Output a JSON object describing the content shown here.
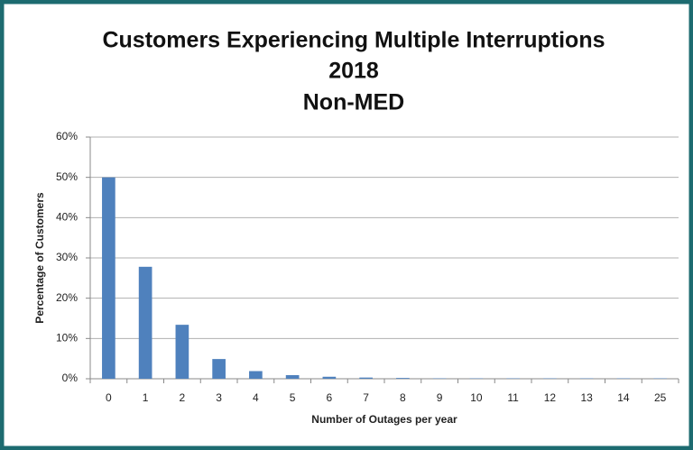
{
  "chart_data": {
    "type": "bar",
    "title": [
      "Customers Experiencing Multiple Interruptions",
      "2018",
      "Non-MED"
    ],
    "x_label": "Number of Outages per year",
    "y_label": "Percentage of Customers",
    "categories": [
      "0",
      "1",
      "2",
      "3",
      "4",
      "5",
      "6",
      "7",
      "8",
      "9",
      "10",
      "11",
      "12",
      "13",
      "14",
      "25"
    ],
    "values": [
      50,
      27.8,
      13.4,
      4.9,
      1.9,
      0.9,
      0.5,
      0.3,
      0.2,
      0.1,
      0.1,
      0.1,
      0.1,
      0.1,
      0.1,
      0.1
    ],
    "color": "#4f81bd",
    "ylim": [
      0,
      60
    ],
    "yticks": [
      {
        "value": 0,
        "label": "0%"
      },
      {
        "value": 10,
        "label": "10%"
      },
      {
        "value": 20,
        "label": "20%"
      },
      {
        "value": 30,
        "label": "30%"
      },
      {
        "value": 40,
        "label": "40%"
      },
      {
        "value": 50,
        "label": "50%"
      },
      {
        "value": 60,
        "label": "60%"
      }
    ],
    "grid": true
  }
}
